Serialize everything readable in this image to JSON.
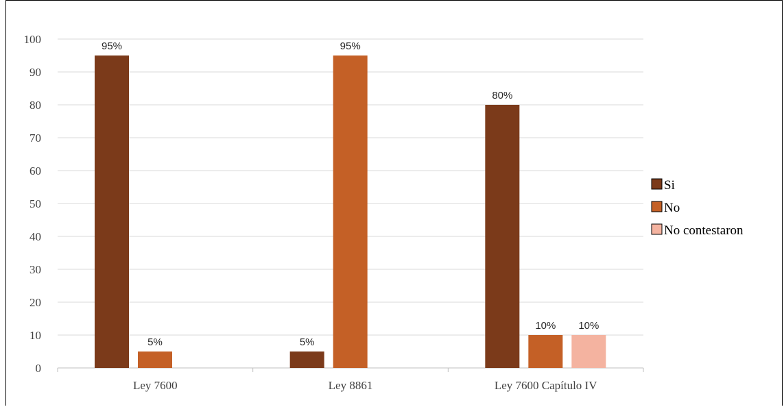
{
  "chart_data": {
    "type": "bar",
    "categories": [
      "Ley 7600",
      "Ley 8861",
      "Ley 7600 Capítulo IV"
    ],
    "series": [
      {
        "name": "Si",
        "values": [
          95,
          5,
          80
        ],
        "labels": [
          "95%",
          "5%",
          "80%"
        ],
        "color": "#7B3A1A"
      },
      {
        "name": "No",
        "values": [
          5,
          95,
          10
        ],
        "labels": [
          "5%",
          "95%",
          "10%"
        ],
        "color": "#C46026"
      },
      {
        "name": "No contestaron",
        "values": [
          null,
          null,
          10
        ],
        "labels": [
          null,
          null,
          "10%"
        ],
        "color": "#F4B3A0"
      }
    ],
    "y_ticks": [
      "0",
      "10",
      "20",
      "30",
      "40",
      "50",
      "60",
      "70",
      "80",
      "90",
      "100"
    ],
    "ylim": [
      0,
      100
    ],
    "grid": true,
    "legend_position": "right",
    "title": "",
    "xlabel": "",
    "ylabel": ""
  }
}
